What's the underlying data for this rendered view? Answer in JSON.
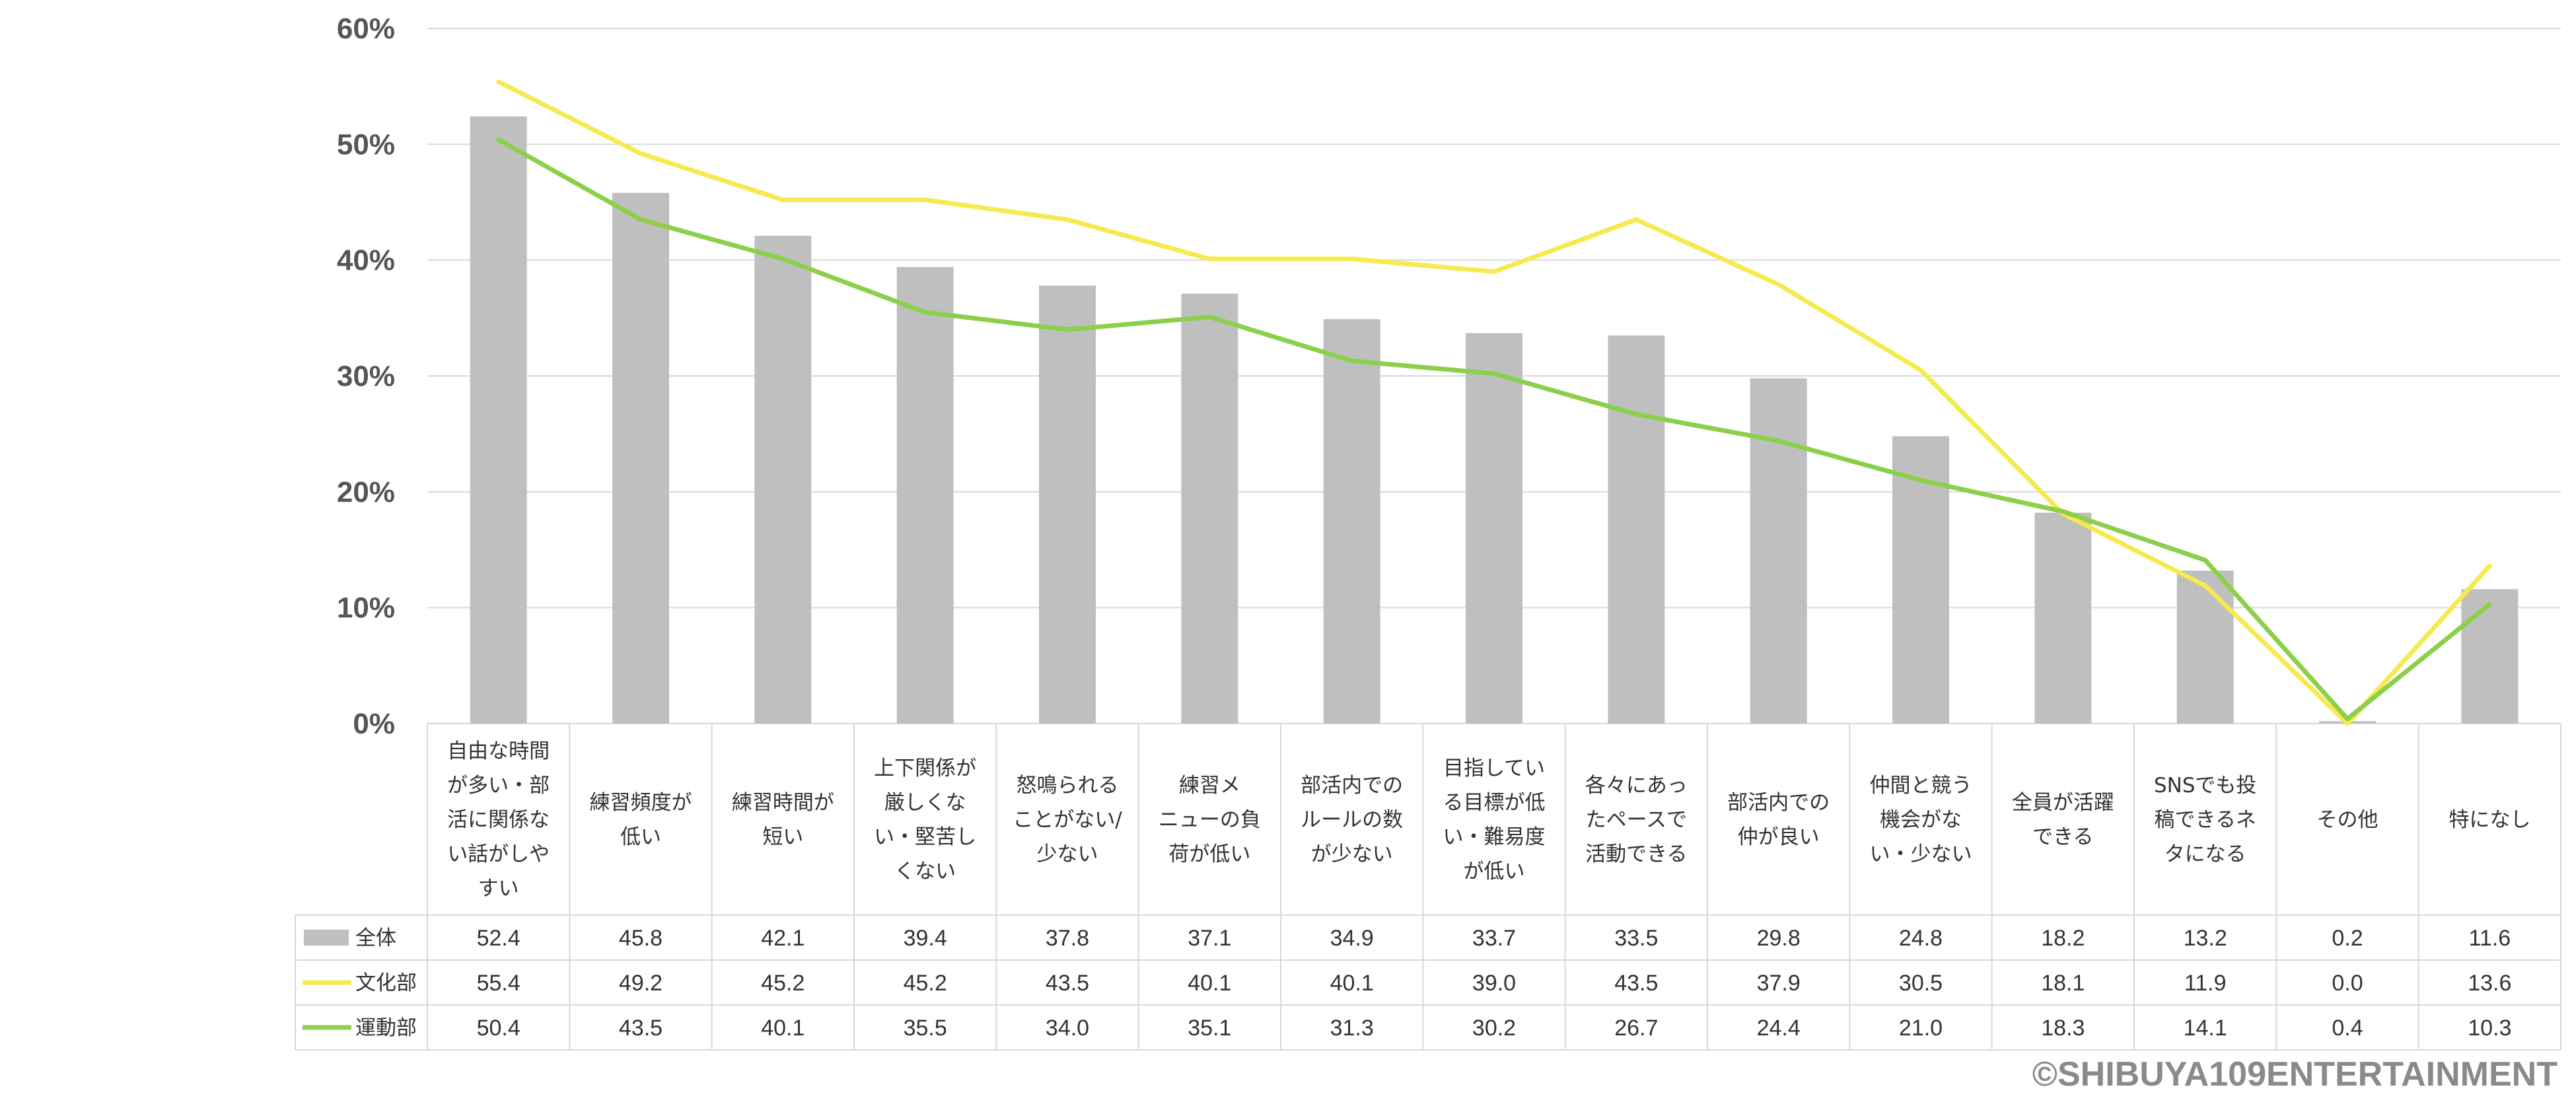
{
  "chart_data": {
    "type": "bar",
    "title": "",
    "xlabel": "",
    "ylabel": "",
    "ylim": [
      0,
      60
    ],
    "y_ticks": [
      "0%",
      "10%",
      "20%",
      "30%",
      "40%",
      "50%",
      "60%"
    ],
    "grid": true,
    "categories": [
      "自由な時間が多い・部活に関係ない話がしやすい",
      "練習頻度が低い",
      "練習時間が短い",
      "上下関係が厳しくない・堅苦しくない",
      "怒鳴られることがない/少ない",
      "練習メニューの負荷が低い",
      "部活内でのルールの数が少ない",
      "目指している目標が低い・難易度が低い",
      "各々にあったペースで活動できる",
      "部活内での仲が良い",
      "仲間と競う機会がない・少ない",
      "全員が活躍できる",
      "SNSでも投稿できるネタになる",
      "その他",
      "特になし"
    ],
    "category_lines": [
      [
        "自由な時間",
        "が多い・部",
        "活に関係な",
        "い話がしや",
        "すい"
      ],
      [
        "練習頻度が",
        "低い"
      ],
      [
        "練習時間が",
        "短い"
      ],
      [
        "上下関係が",
        "厳しくな",
        "い・堅苦し",
        "くない"
      ],
      [
        "怒鳴られる",
        "ことがない/",
        "少ない"
      ],
      [
        "練習メ",
        "ニューの負",
        "荷が低い"
      ],
      [
        "部活内での",
        "ルールの数",
        "が少ない"
      ],
      [
        "目指してい",
        "る目標が低",
        "い・難易度",
        "が低い"
      ],
      [
        "各々にあっ",
        "たペースで",
        "活動できる"
      ],
      [
        "部活内での",
        "仲が良い"
      ],
      [
        "仲間と競う",
        "機会がな",
        "い・少ない"
      ],
      [
        "全員が活躍",
        "できる"
      ],
      [
        "SNSでも投",
        "稿できるネ",
        "タになる"
      ],
      [
        "その他"
      ],
      [
        "特になし"
      ]
    ],
    "series": [
      {
        "name": "全体",
        "type": "bar",
        "color": "#bfbfbf",
        "values": [
          52.4,
          45.8,
          42.1,
          39.4,
          37.8,
          37.1,
          34.9,
          33.7,
          33.5,
          29.8,
          24.8,
          18.2,
          13.2,
          0.2,
          11.6
        ],
        "labels": [
          "52.4",
          "45.8",
          "42.1",
          "39.4",
          "37.8",
          "37.1",
          "34.9",
          "33.7",
          "33.5",
          "29.8",
          "24.8",
          "18.2",
          "13.2",
          "0.2",
          "11.6"
        ]
      },
      {
        "name": "文化部",
        "type": "line",
        "color": "#f5ea4f",
        "values": [
          55.4,
          49.2,
          45.2,
          45.2,
          43.5,
          40.1,
          40.1,
          39.0,
          43.5,
          37.9,
          30.5,
          18.1,
          11.9,
          0.0,
          13.6
        ],
        "labels": [
          "55.4",
          "49.2",
          "45.2",
          "45.2",
          "43.5",
          "40.1",
          "40.1",
          "39.0",
          "43.5",
          "37.9",
          "30.5",
          "18.1",
          "11.9",
          "0.0",
          "13.6"
        ]
      },
      {
        "name": "運動部",
        "type": "line",
        "color": "#8ccf4a",
        "values": [
          50.4,
          43.5,
          40.1,
          35.5,
          34.0,
          35.1,
          31.3,
          30.2,
          26.7,
          24.4,
          21.0,
          18.3,
          14.1,
          0.4,
          10.3
        ],
        "labels": [
          "50.4",
          "43.5",
          "40.1",
          "35.5",
          "34.0",
          "35.1",
          "31.3",
          "30.2",
          "26.7",
          "24.4",
          "21.0",
          "18.3",
          "14.1",
          "0.4",
          "10.3"
        ]
      }
    ],
    "legend": "data-table-left"
  },
  "copyright": "©SHIBUYA109ENTERTAINMENT",
  "colors": {
    "grid": "#d9d9d9",
    "table_border": "#d9d9d9",
    "tick_text": "#555555",
    "body_text": "#333333",
    "copyright_text": "#8a8a8a"
  }
}
